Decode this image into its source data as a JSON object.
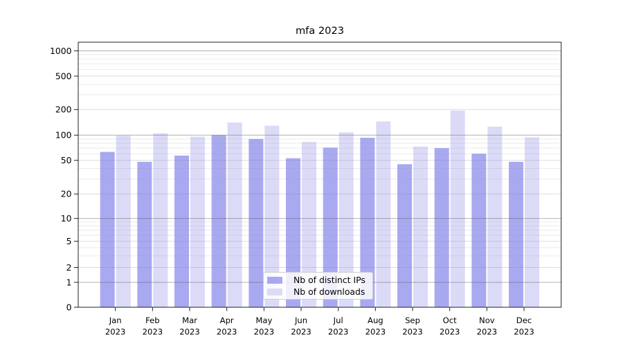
{
  "chart_data": {
    "type": "bar",
    "title": "mfa 2023",
    "categories": [
      "Jan 2023",
      "Feb 2023",
      "Mar 2023",
      "Apr 2023",
      "May 2023",
      "Jun 2023",
      "Jul 2023",
      "Aug 2023",
      "Sep 2023",
      "Oct 2023",
      "Nov 2023",
      "Dec 2023"
    ],
    "series": [
      {
        "name": "Nb of distinct IPs",
        "color": "#a9a9f1",
        "values": [
          63,
          48,
          57,
          100,
          90,
          53,
          71,
          93,
          45,
          70,
          60,
          48
        ]
      },
      {
        "name": "Nb of downloads",
        "color": "#dbdbf8",
        "values": [
          99,
          105,
          96,
          141,
          129,
          83,
          108,
          145,
          73,
          195,
          126,
          94
        ]
      }
    ],
    "xlabel": "",
    "ylabel": "",
    "y_axis": {
      "scale": "symlog",
      "ticks": [
        0,
        1,
        2,
        5,
        10,
        20,
        50,
        100,
        200,
        500,
        1000
      ],
      "ylim": [
        0,
        1270
      ]
    },
    "grid": "both, drawn over bars",
    "legend_position": "lower center"
  },
  "style_colors": {
    "background": "#ffffff",
    "spine": "#1f1f1f",
    "grid_major": "#b1b1b1",
    "grid_mid": "#dcdcdc",
    "grid_minor": "#ececec"
  }
}
